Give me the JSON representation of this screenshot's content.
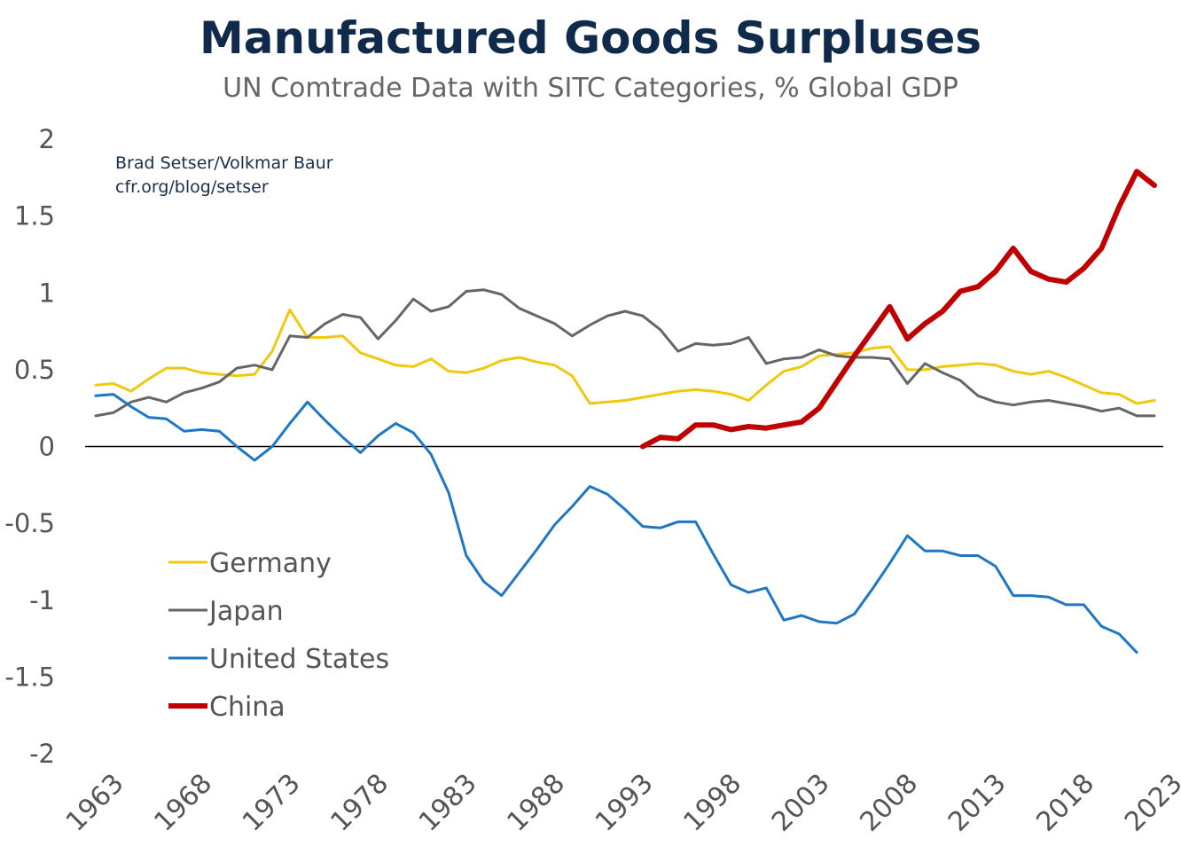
{
  "chart_data": {
    "type": "line",
    "title": "Manufactured Goods Surpluses",
    "subtitle": "UN Comtrade Data with SITC Categories, % Global GDP",
    "credits": [
      "Brad Setser/Volkmar Baur",
      "cfr.org/blog/setser"
    ],
    "xlabel": "",
    "ylabel": "",
    "xlim": [
      1963,
      2023
    ],
    "ylim": [
      -2,
      2
    ],
    "x_ticks": [
      1963,
      1968,
      1973,
      1978,
      1983,
      1988,
      1993,
      1998,
      2003,
      2008,
      2013,
      2018,
      2023
    ],
    "y_ticks": [
      2,
      1.5,
      1,
      0.5,
      0,
      -0.5,
      -1,
      -1.5,
      -2
    ],
    "y_tick_labels": [
      "2",
      "1.5",
      "1",
      "0.5",
      "0",
      "-0.5",
      "-1",
      "-1.5",
      "-2"
    ],
    "zero_line": true,
    "grid": false,
    "legend_position": "lower-left",
    "series": [
      {
        "name": "Germany",
        "color": "#f2c80f",
        "width": 3,
        "x_start": 1963,
        "values": [
          0.4,
          0.41,
          0.36,
          0.44,
          0.51,
          0.51,
          0.48,
          0.47,
          0.46,
          0.47,
          0.62,
          0.89,
          0.71,
          0.71,
          0.72,
          0.61,
          0.57,
          0.53,
          0.52,
          0.57,
          0.49,
          0.48,
          0.51,
          0.56,
          0.58,
          0.55,
          0.53,
          0.46,
          0.28,
          0.29,
          0.3,
          0.32,
          0.34,
          0.36,
          0.37,
          0.36,
          0.34,
          0.3,
          0.4,
          0.49,
          0.52,
          0.59,
          0.6,
          0.61,
          0.64,
          0.65,
          0.5,
          0.5,
          0.52,
          0.53,
          0.54,
          0.53,
          0.49,
          0.47,
          0.49,
          0.45,
          0.4,
          0.35,
          0.34,
          0.28,
          0.3
        ]
      },
      {
        "name": "Japan",
        "color": "#666666",
        "width": 3,
        "x_start": 1963,
        "values": [
          0.2,
          0.22,
          0.29,
          0.32,
          0.29,
          0.35,
          0.38,
          0.42,
          0.51,
          0.53,
          0.5,
          0.72,
          0.71,
          0.8,
          0.86,
          0.84,
          0.7,
          0.82,
          0.96,
          0.88,
          0.91,
          1.01,
          1.02,
          0.99,
          0.9,
          0.85,
          0.8,
          0.72,
          0.79,
          0.85,
          0.88,
          0.85,
          0.76,
          0.62,
          0.67,
          0.66,
          0.67,
          0.71,
          0.54,
          0.57,
          0.58,
          0.63,
          0.59,
          0.58,
          0.58,
          0.57,
          0.41,
          0.54,
          0.48,
          0.43,
          0.33,
          0.29,
          0.27,
          0.29,
          0.3,
          0.28,
          0.26,
          0.23,
          0.25,
          0.2,
          0.2
        ]
      },
      {
        "name": "United States",
        "color": "#1f77c4",
        "width": 3,
        "x_start": 1963,
        "values": [
          0.33,
          0.34,
          0.26,
          0.19,
          0.18,
          0.1,
          0.11,
          0.1,
          0.0,
          -0.09,
          0.0,
          0.15,
          0.29,
          0.17,
          0.06,
          -0.04,
          0.07,
          0.15,
          0.09,
          -0.05,
          -0.3,
          -0.71,
          -0.88,
          -0.97,
          -0.82,
          -0.67,
          -0.51,
          -0.39,
          -0.26,
          -0.31,
          -0.41,
          -0.52,
          -0.53,
          -0.49,
          -0.49,
          -0.7,
          -0.9,
          -0.95,
          -0.92,
          -1.13,
          -1.1,
          -1.14,
          -1.15,
          -1.09,
          -0.93,
          -0.76,
          -0.58,
          -0.68,
          -0.68,
          -0.71,
          -0.71,
          -0.78,
          -0.97,
          -0.97,
          -0.98,
          -1.03,
          -1.03,
          -1.17,
          -1.22,
          -1.34
        ]
      },
      {
        "name": "China",
        "color": "#c00000",
        "width": 6,
        "x_start": 1994,
        "values": [
          0.0,
          0.06,
          0.05,
          0.14,
          0.14,
          0.11,
          0.13,
          0.12,
          0.14,
          0.16,
          0.25,
          0.42,
          0.59,
          0.75,
          0.91,
          0.7,
          0.8,
          0.88,
          1.01,
          1.04,
          1.14,
          1.29,
          1.14,
          1.09,
          1.07,
          1.16,
          1.29,
          1.56,
          1.79,
          1.7
        ]
      }
    ]
  }
}
